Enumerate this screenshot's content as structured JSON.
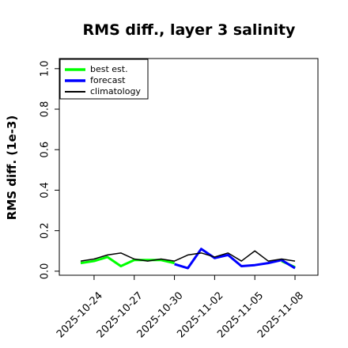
{
  "chart_data": {
    "type": "line",
    "title": "RMS diff., layer 3 salinity",
    "xlabel": "",
    "ylabel": "RMS diff. (1e-3)",
    "ylim": [
      -0.02,
      1.05
    ],
    "yticks": [
      "0.0",
      "0.2",
      "0.4",
      "0.6",
      "0.8",
      "1.0"
    ],
    "xticks": [
      "2025-10-24",
      "2025-10-27",
      "2025-10-30",
      "2025-11-02",
      "2025-11-05",
      "2025-11-08"
    ],
    "highlighted_xtick": "2025-10-30",
    "highlight_color": "#228b22",
    "x": [
      "2025-10-23",
      "2025-10-24",
      "2025-10-25",
      "2025-10-26",
      "2025-10-27",
      "2025-10-28",
      "2025-10-29",
      "2025-10-30",
      "2025-10-31",
      "2025-11-01",
      "2025-11-02",
      "2025-11-03",
      "2025-11-04",
      "2025-11-05",
      "2025-11-06",
      "2025-11-07",
      "2025-11-08"
    ],
    "series": [
      {
        "name": "best est.",
        "color": "#00ff00",
        "width": 3,
        "values": [
          0.04,
          0.05,
          0.07,
          0.025,
          0.055,
          0.055,
          0.055,
          0.04,
          null,
          null,
          null,
          null,
          null,
          null,
          null,
          0.05,
          0.02
        ]
      },
      {
        "name": "forecast",
        "color": "#0000ff",
        "width": 3,
        "values": [
          null,
          null,
          null,
          null,
          null,
          null,
          null,
          0.035,
          0.015,
          0.11,
          0.065,
          0.08,
          0.025,
          0.03,
          0.04,
          0.055,
          0.015
        ]
      },
      {
        "name": "climatology",
        "color": "#000000",
        "width": 1.5,
        "values": [
          0.05,
          0.06,
          0.08,
          0.09,
          0.06,
          0.05,
          0.06,
          0.05,
          0.08,
          0.09,
          0.07,
          0.09,
          0.05,
          0.1,
          0.05,
          0.06,
          0.05
        ]
      }
    ],
    "legend_position": "top-left",
    "grid": false
  }
}
